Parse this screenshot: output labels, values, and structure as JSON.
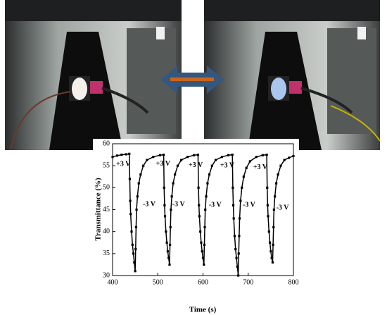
{
  "chart_data": {
    "type": "line",
    "xlabel": "Time (s)",
    "ylabel": "Transmittance (%)",
    "xlim": [
      400,
      800
    ],
    "xticks": [
      400,
      500,
      600,
      700,
      800
    ],
    "ylim": [
      30,
      60
    ],
    "yticks": [
      30,
      35,
      40,
      45,
      50,
      55,
      60
    ],
    "color": "#000000",
    "marker": "square",
    "x": [
      400,
      410,
      420,
      430,
      437,
      438,
      439,
      440,
      442,
      444,
      446,
      448,
      450,
      451,
      452,
      453,
      455,
      458,
      462,
      468,
      476,
      490,
      505,
      513,
      514,
      515,
      516,
      518,
      520,
      522,
      524,
      526,
      527,
      528,
      529,
      531,
      534,
      538,
      544,
      552,
      566,
      580,
      589,
      590,
      591,
      592,
      594,
      596,
      598,
      600,
      602,
      603,
      604,
      605,
      607,
      610,
      614,
      620,
      628,
      642,
      656,
      665,
      666,
      667,
      668,
      670,
      672,
      674,
      676,
      678,
      679,
      680,
      681,
      683,
      686,
      690,
      696,
      704,
      718,
      732,
      741,
      742,
      743,
      744,
      746,
      748,
      750,
      752,
      754,
      755,
      756,
      757,
      759,
      762,
      766,
      772,
      780,
      790,
      800
    ],
    "y": [
      57,
      57.3,
      57.5,
      57.6,
      57.7,
      52,
      47,
      44,
      40,
      37,
      35,
      33,
      31,
      36,
      41,
      45,
      48,
      51,
      53,
      55,
      56.3,
      57,
      57.4,
      57.5,
      50,
      46,
      43.5,
      40,
      37.5,
      35.5,
      34,
      32.5,
      37,
      41,
      45,
      48,
      51,
      53,
      55,
      56.3,
      57,
      57.4,
      57.5,
      50,
      46,
      43.5,
      40,
      37.5,
      35.5,
      34,
      32.5,
      37,
      41,
      45,
      48,
      51,
      53,
      55,
      56.3,
      57,
      57.4,
      57.5,
      50,
      46,
      43,
      39,
      36,
      34,
      32,
      30,
      35,
      39,
      43,
      47,
      50,
      52.5,
      54.5,
      56,
      57,
      57.4,
      57.5,
      50,
      46,
      43.5,
      40,
      37.5,
      35.5,
      34,
      33,
      37,
      41,
      45,
      48,
      51,
      53,
      55,
      56.3,
      56.8,
      57.2
    ],
    "annotations": [
      {
        "text": "+3 V",
        "x": 408,
        "y": 55.3
      },
      {
        "text": "+3 V",
        "x": 496,
        "y": 55.4
      },
      {
        "text": "+3 V",
        "x": 568,
        "y": 55.1
      },
      {
        "text": "+3 V",
        "x": 638,
        "y": 55
      },
      {
        "text": "+3 V",
        "x": 711,
        "y": 54.6
      },
      {
        "text": "-3 V",
        "x": 467,
        "y": 46.2
      },
      {
        "text": "-3 V",
        "x": 532,
        "y": 46.2
      },
      {
        "text": "-3 V",
        "x": 613,
        "y": 46
      },
      {
        "text": "-3 V",
        "x": 688,
        "y": 46
      },
      {
        "text": "-3 V",
        "x": 762,
        "y": 45.4
      }
    ]
  }
}
